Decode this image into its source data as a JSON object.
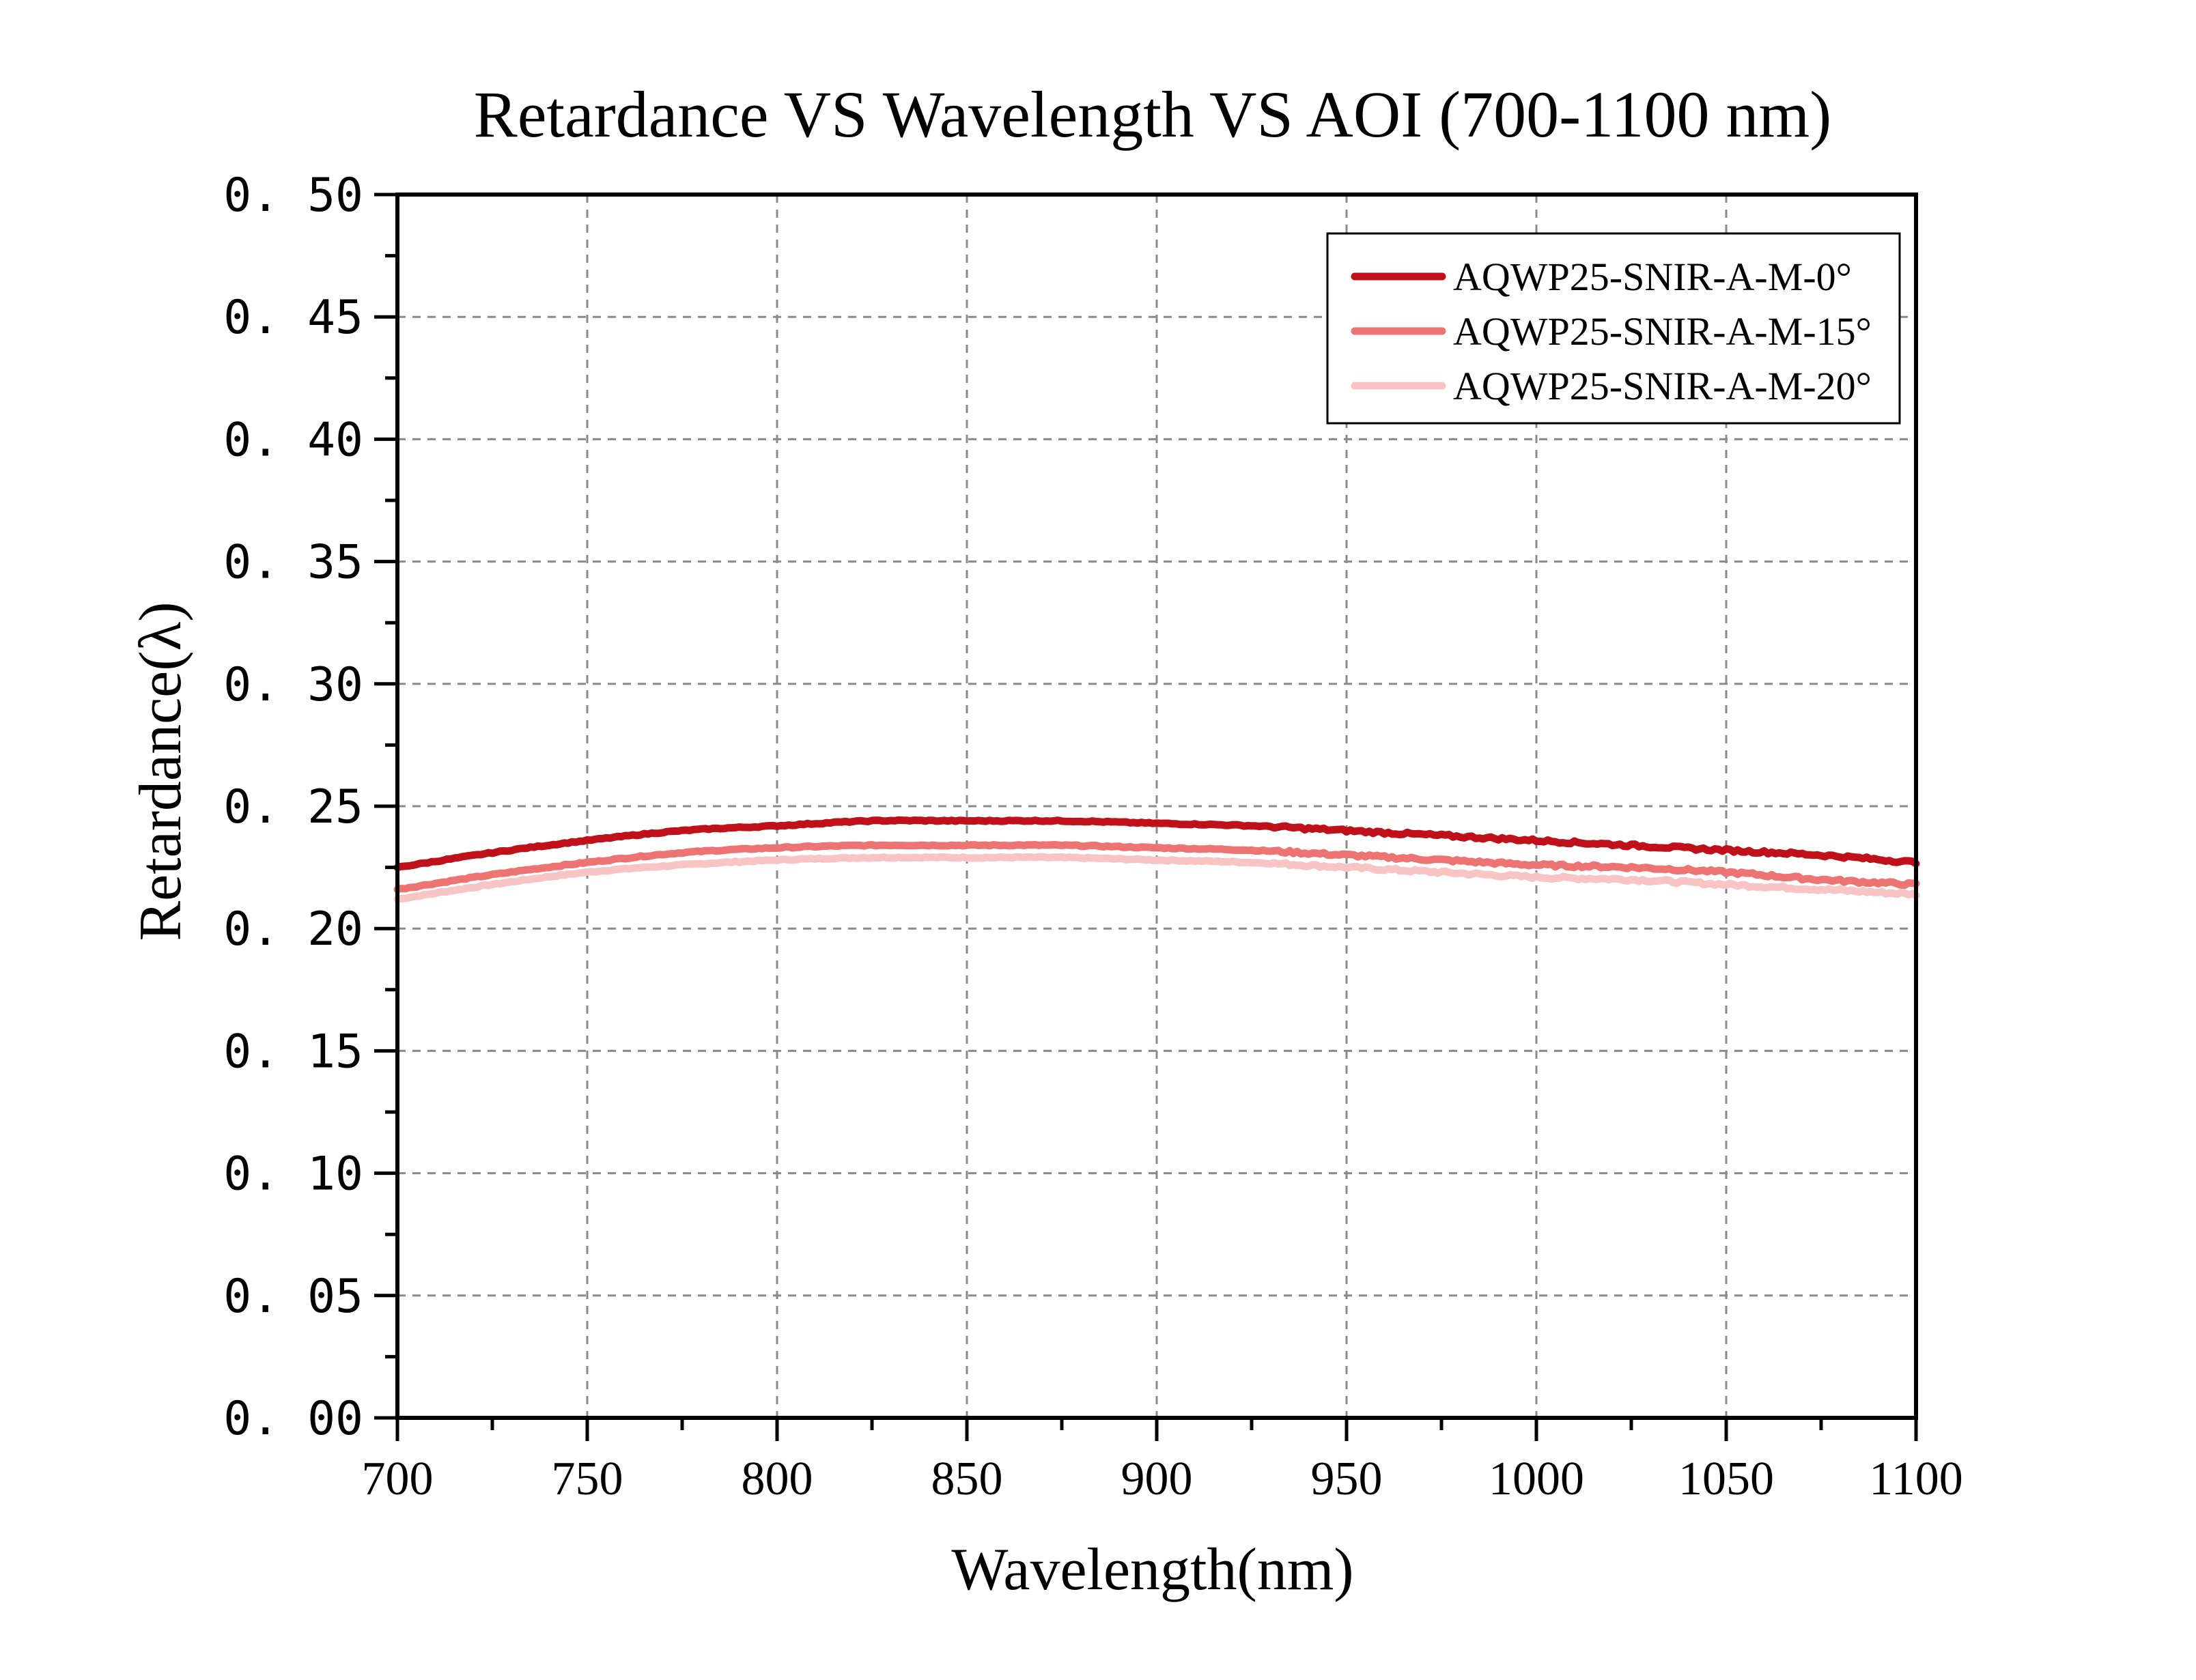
{
  "chart_data": {
    "type": "line",
    "title": "Retardance VS Wavelength VS AOI (700-1100 nm)",
    "xlabel": "Wavelength(nm)",
    "ylabel": "Retardance(λ)",
    "xlim": [
      700,
      1100
    ],
    "ylim": [
      0.0,
      0.5
    ],
    "grid": true,
    "legend_position": "top-right",
    "x_ticks": [
      700,
      750,
      800,
      850,
      900,
      950,
      1000,
      1050,
      1100
    ],
    "x_tick_labels": [
      "700",
      "750",
      "800",
      "850",
      "900",
      "950",
      "1000",
      "1050",
      "1100"
    ],
    "y_ticks": [
      0.0,
      0.05,
      0.1,
      0.15,
      0.2,
      0.25,
      0.3,
      0.35,
      0.4,
      0.45,
      0.5
    ],
    "y_tick_labels": [
      "0. 00",
      "0. 05",
      "0. 10",
      "0. 15",
      "0. 20",
      "0. 25",
      "0. 30",
      "0. 35",
      "0. 40",
      "0. 45",
      "0. 50"
    ],
    "x": [
      700,
      725,
      750,
      775,
      800,
      825,
      850,
      875,
      900,
      925,
      950,
      975,
      1000,
      1025,
      1050,
      1075,
      1100
    ],
    "series": [
      {
        "name": "AQWP25-SNIR-A-M-0°",
        "color": "#c0101a",
        "values": [
          0.225,
          0.231,
          0.236,
          0.24,
          0.242,
          0.244,
          0.244,
          0.244,
          0.243,
          0.242,
          0.24,
          0.238,
          0.236,
          0.234,
          0.232,
          0.23,
          0.227
        ]
      },
      {
        "name": "AQWP25-SNIR-A-M-15°",
        "color": "#ee7474",
        "values": [
          0.216,
          0.222,
          0.227,
          0.231,
          0.233,
          0.234,
          0.234,
          0.234,
          0.233,
          0.232,
          0.23,
          0.228,
          0.226,
          0.225,
          0.223,
          0.22,
          0.218
        ]
      },
      {
        "name": "AQWP25-SNIR-A-M-20°",
        "color": "#f8c4c4",
        "values": [
          0.212,
          0.218,
          0.223,
          0.226,
          0.228,
          0.229,
          0.229,
          0.229,
          0.228,
          0.227,
          0.225,
          0.223,
          0.221,
          0.22,
          0.218,
          0.216,
          0.214
        ]
      }
    ]
  }
}
